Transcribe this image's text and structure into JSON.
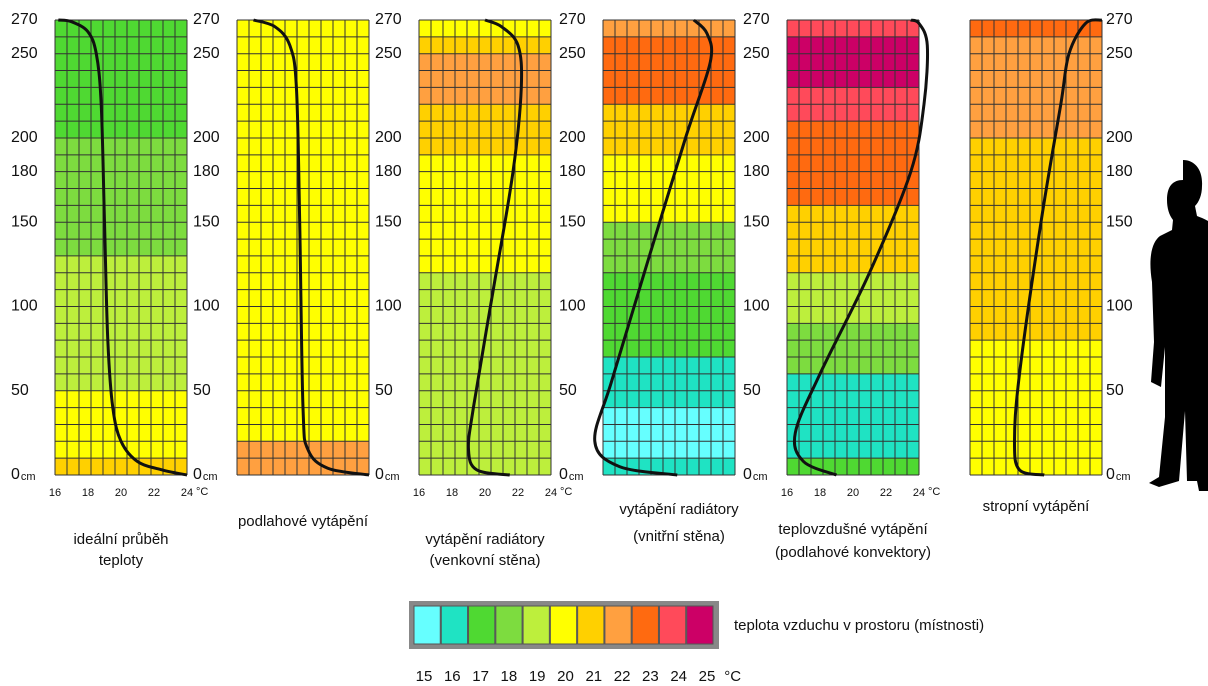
{
  "panels": [
    {
      "title": [
        "ideální průběh",
        "teploty"
      ],
      "height_ticks": [
        270,
        250,
        200,
        180,
        150,
        100,
        50,
        0
      ],
      "height_unit": "cm",
      "temp_ticks": [
        16,
        18,
        20,
        22,
        24
      ],
      "temp_unit": "°C"
    },
    {
      "title": [
        "podlahové vytápění"
      ],
      "height_ticks": [
        270,
        250,
        200,
        180,
        150,
        100,
        50,
        0
      ],
      "height_unit": "cm"
    },
    {
      "title": [
        "vytápění radiátory",
        "(venkovní stěna)"
      ],
      "height_ticks": [
        270,
        250,
        200,
        180,
        150,
        100,
        50,
        0
      ],
      "height_unit": "cm",
      "temp_ticks": [
        16,
        18,
        20,
        22,
        24
      ],
      "temp_unit": "°C"
    },
    {
      "title": [
        "vytápění radiátory",
        "(vnitřní stěna)"
      ],
      "height_ticks": [
        270,
        250,
        200,
        180,
        150,
        100,
        50,
        0
      ],
      "height_unit": "cm"
    },
    {
      "title": [
        "teplovzdušné vytápění",
        "(podlahové konvektory)"
      ],
      "height_ticks": [
        270,
        250,
        200,
        180,
        150,
        100,
        50,
        0
      ],
      "height_unit": "cm",
      "temp_ticks": [
        16,
        18,
        20,
        22,
        24
      ],
      "temp_unit": "°C"
    },
    {
      "title": [
        "stropní  vytápění"
      ],
      "height_ticks": [
        270,
        250,
        200,
        180,
        150,
        100,
        50,
        0
      ],
      "height_unit": "cm"
    }
  ],
  "legend": {
    "text": "teplota vzduchu v prostoru (místnosti)",
    "values": [
      15,
      16,
      17,
      18,
      19,
      20,
      21,
      22,
      23,
      24,
      25
    ],
    "unit": "°C"
  }
}
